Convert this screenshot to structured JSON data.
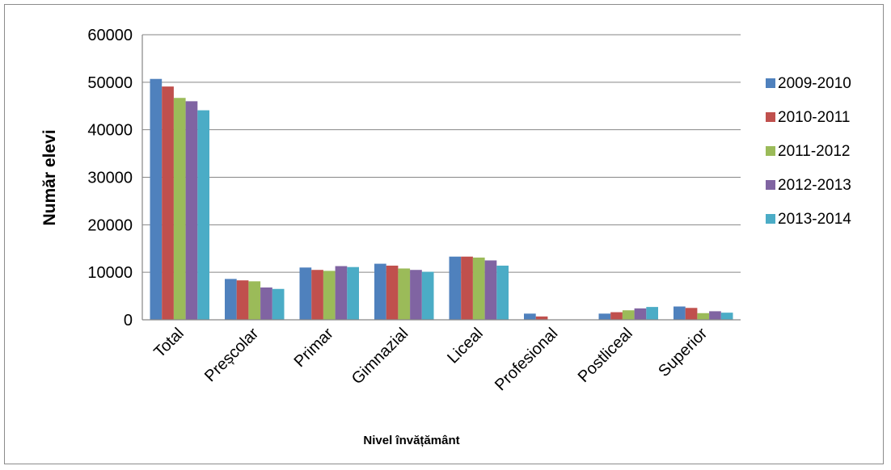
{
  "chart_data": {
    "type": "bar",
    "title": "",
    "xlabel": "Nivel învățământ",
    "ylabel": "Număr elevi",
    "ylim": [
      0,
      60000
    ],
    "yticks": [
      0,
      10000,
      20000,
      30000,
      40000,
      50000,
      60000
    ],
    "grid": true,
    "legend_position": "right",
    "categories": [
      "Total",
      "Preșcolar",
      "Primar",
      "Gimnazial",
      "Liceal",
      "Profesional",
      "Postliceal",
      "Superior"
    ],
    "series": [
      {
        "name": "2009-2010",
        "color": "#4f81bd",
        "values": [
          50700,
          8600,
          11000,
          11800,
          13300,
          1300,
          1300,
          2800
        ]
      },
      {
        "name": "2010-2011",
        "color": "#c0504d",
        "values": [
          49100,
          8300,
          10500,
          11400,
          13300,
          700,
          1600,
          2500
        ]
      },
      {
        "name": "2011-2012",
        "color": "#9bbb59",
        "values": [
          46700,
          8100,
          10300,
          10800,
          13100,
          0,
          2000,
          1400
        ]
      },
      {
        "name": "2012-2013",
        "color": "#8064a2",
        "values": [
          46000,
          6800,
          11300,
          10500,
          12500,
          0,
          2400,
          1800
        ]
      },
      {
        "name": "2013-2014",
        "color": "#4bacc6",
        "values": [
          44100,
          6500,
          11100,
          10100,
          11400,
          0,
          2700,
          1500
        ]
      }
    ]
  }
}
